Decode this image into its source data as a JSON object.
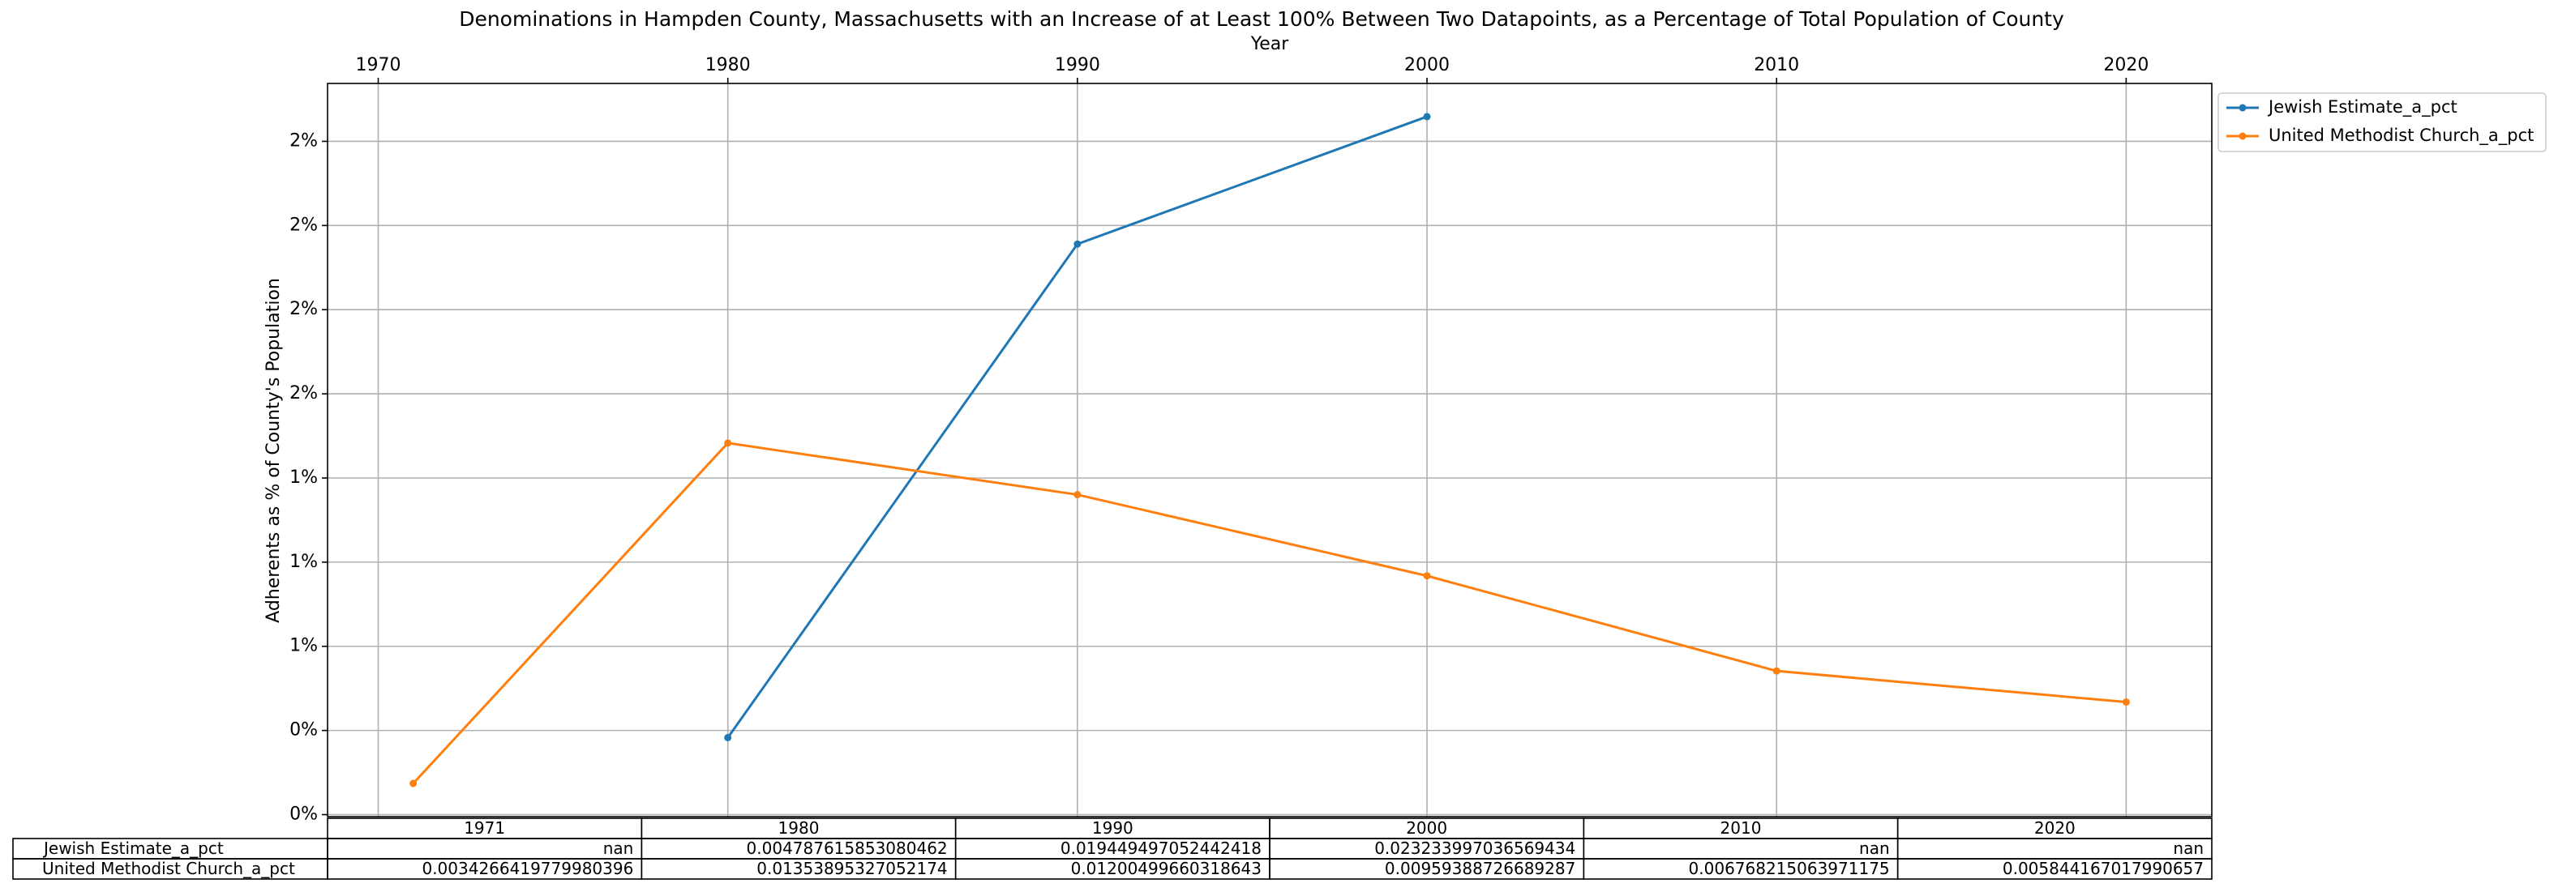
{
  "chart_data": {
    "type": "line",
    "title": "Denominations in Hampden County, Massachusetts with an Increase of at Least 100% Between Two Datapoints, as a Percentage of Total Population of County",
    "x_label": "Year",
    "y_label": "Adherents as % of County's Population",
    "x": [
      1971,
      1980,
      1990,
      2000,
      2010,
      2020
    ],
    "series": [
      {
        "name": "Jewish Estimate_a_pct",
        "color": "#1f77b4",
        "values": [
          null,
          0.4787615853080462,
          1.9449497052442417,
          2.3233997036569436,
          null,
          null
        ]
      },
      {
        "name": "United Methodist Church_a_pct",
        "color": "#ff7f0e",
        "values": [
          0.34266419779980395,
          1.353895327052174,
          1.200499660318643,
          0.959388726689287,
          0.6768215063971175,
          0.5844167017990657
        ]
      }
    ],
    "xlim": [
      1968.55,
      2022.45
    ],
    "xticks": [
      1970,
      1980,
      1990,
      2000,
      2010,
      2020
    ],
    "ylim": [
      0.244,
      2.422
    ],
    "yticks": [
      {
        "value": 0.25,
        "label": "0%"
      },
      {
        "value": 0.5,
        "label": "0%"
      },
      {
        "value": 0.75,
        "label": "1%"
      },
      {
        "value": 1.0,
        "label": "1%"
      },
      {
        "value": 1.25,
        "label": "1%"
      },
      {
        "value": 1.5,
        "label": "2%"
      },
      {
        "value": 1.75,
        "label": "2%"
      },
      {
        "value": 2.0,
        "label": "2%"
      },
      {
        "value": 2.25,
        "label": "2%"
      }
    ],
    "grid": true,
    "legend": "outside upper right",
    "table": [
      [
        "nan",
        "0.004787615853080462",
        "0.019449497052442418",
        "0.023233997036569434",
        "nan",
        "nan"
      ],
      [
        "0.0034266419779980396",
        "0.01353895327052174",
        "0.01200499660318643",
        "0.00959388726689287",
        "0.006768215063971175",
        "0.005844167017990657"
      ]
    ]
  }
}
